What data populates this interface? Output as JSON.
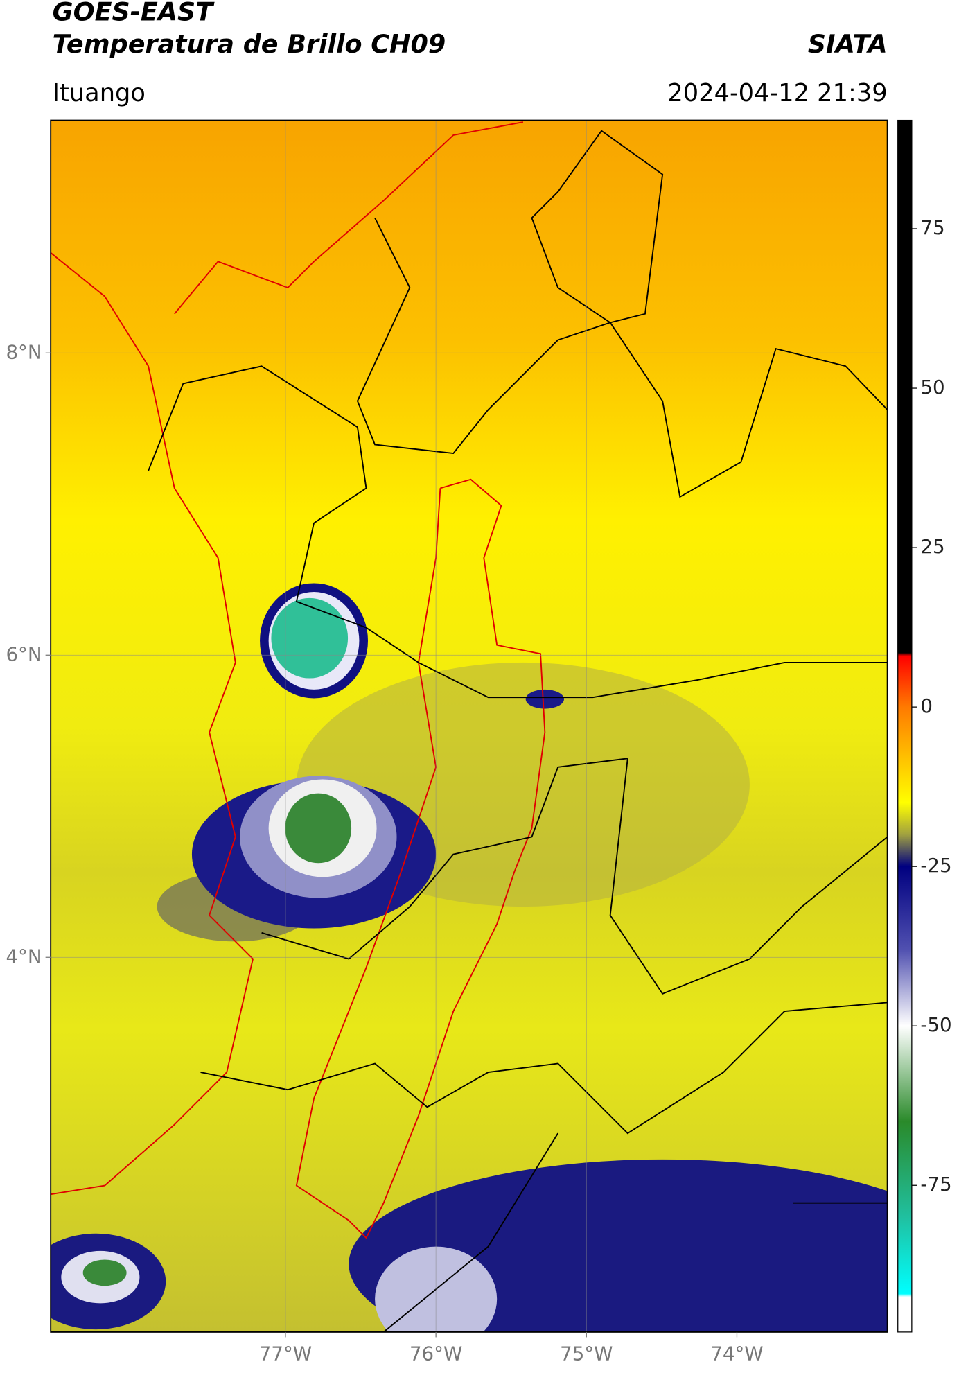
{
  "header": {
    "satellite": "GOES-EAST",
    "product": "Temperatura de Brillo CH09",
    "agency": "SIATA",
    "location": "Ituango",
    "datetime": "2024-04-12 21:39"
  },
  "map": {
    "xlim": [
      -78.56,
      -73.0
    ],
    "ylim": [
      1.52,
      9.54
    ],
    "xticks": [
      {
        "value": -77,
        "label": "77°W"
      },
      {
        "value": -76,
        "label": "76°W"
      },
      {
        "value": -75,
        "label": "75°W"
      },
      {
        "value": -74,
        "label": "74°W"
      }
    ],
    "yticks": [
      {
        "value": 8,
        "label": "8°N"
      },
      {
        "value": 6,
        "label": "6°N"
      },
      {
        "value": 4,
        "label": "4°N"
      }
    ],
    "grid": true
  },
  "colorbar": {
    "clim": [
      -98,
      92
    ],
    "yticks": [
      75,
      50,
      25,
      0,
      -25,
      -50,
      -75
    ],
    "colorscale": [
      {
        "value": 92,
        "color": "#000000"
      },
      {
        "value": 8.5,
        "color": "#000000"
      },
      {
        "value": 8,
        "color": "#ff0000"
      },
      {
        "value": 0,
        "color": "#ff7a00"
      },
      {
        "value": -15,
        "color": "#ffff00"
      },
      {
        "value": -20,
        "color": "#a0a040"
      },
      {
        "value": -25,
        "color": "#000080"
      },
      {
        "value": -38,
        "color": "#5050b0"
      },
      {
        "value": -50,
        "color": "#ffffff"
      },
      {
        "value": -65,
        "color": "#2a8a2a"
      },
      {
        "value": -80,
        "color": "#20c0a0"
      },
      {
        "value": -92,
        "color": "#00ffff"
      },
      {
        "value": -92.5,
        "color": "#ffffff"
      },
      {
        "value": -98,
        "color": "#ffffff"
      }
    ]
  }
}
